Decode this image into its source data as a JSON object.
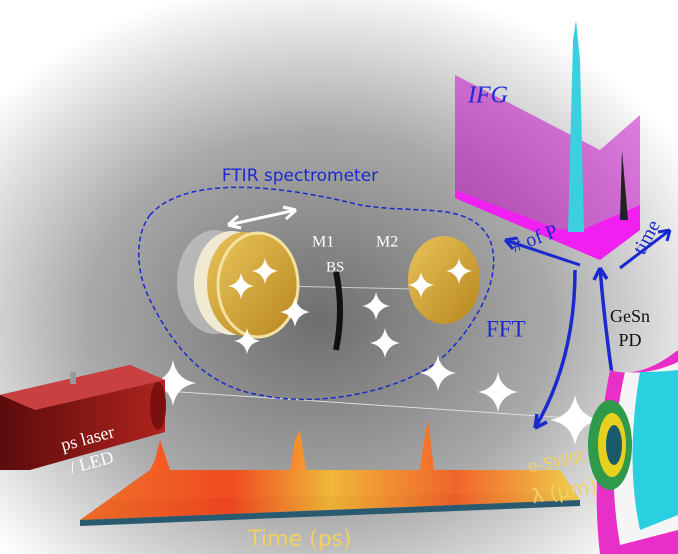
{
  "labels": {
    "ifg": "IFG",
    "ftir": "FTIR spectrometer",
    "m1": "M1",
    "m2": "M2",
    "bs": "BS",
    "num_p": "# of P",
    "time_axis": "time",
    "fft": "FFT",
    "gesn": "GeSn",
    "pd": "PD",
    "laser_line1": "ps laser",
    "laser_line2": "/ LED",
    "eswir": "e-SWIR",
    "lambda": "λ (μm)",
    "time_ps": "Time (ps)"
  }
}
